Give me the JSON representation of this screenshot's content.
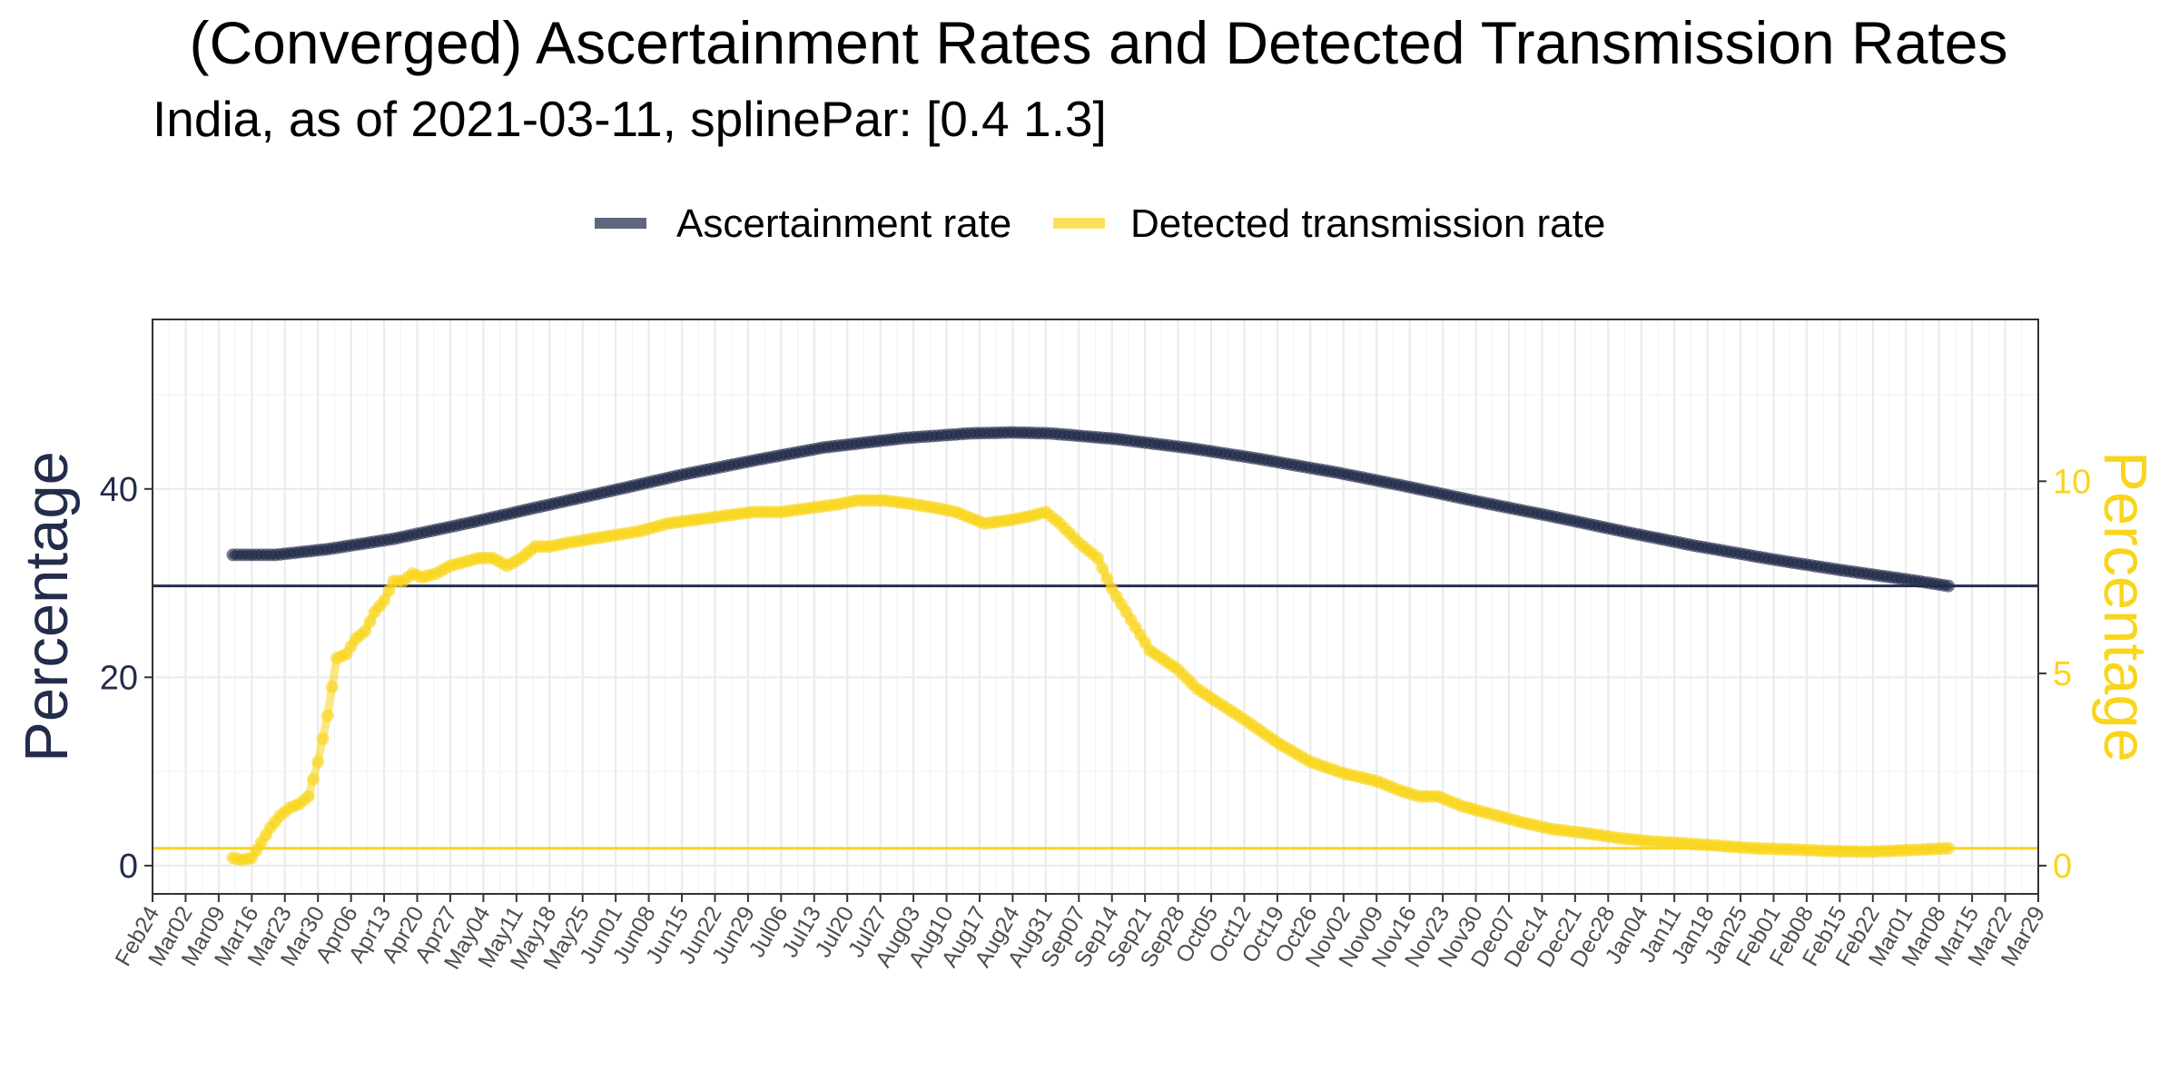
{
  "chart_data": {
    "type": "line",
    "title": "(Converged) Ascertainment Rates and Detected Transmission Rates",
    "subtitle": "India, as of 2021-03-11, splinePar: [0.4 1.3]",
    "ylabel_left": "Percentage",
    "ylabel_right": "Percentage",
    "legend_position": "top",
    "grid": true,
    "x_axis": {
      "type": "date",
      "range": [
        "2020-02-24",
        "2021-03-29"
      ],
      "tick_labels": [
        "Feb24",
        "Mar02",
        "Mar09",
        "Mar16",
        "Mar23",
        "Mar30",
        "Apr06",
        "Apr13",
        "Apr20",
        "Apr27",
        "May04",
        "May11",
        "May18",
        "May25",
        "Jun01",
        "Jun08",
        "Jun15",
        "Jun22",
        "Jun29",
        "Jul06",
        "Jul13",
        "Jul20",
        "Jul27",
        "Aug03",
        "Aug10",
        "Aug17",
        "Aug24",
        "Aug31",
        "Sep07",
        "Sep14",
        "Sep21",
        "Sep28",
        "Oct05",
        "Oct12",
        "Oct19",
        "Oct26",
        "Nov02",
        "Nov09",
        "Nov16",
        "Nov23",
        "Nov30",
        "Dec07",
        "Dec14",
        "Dec21",
        "Dec28",
        "Jan04",
        "Jan11",
        "Jan18",
        "Jan25",
        "Feb01",
        "Feb08",
        "Feb15",
        "Feb22",
        "Mar01",
        "Mar08",
        "Mar15",
        "Mar22",
        "Mar29"
      ]
    },
    "y_left": {
      "range": [
        -3,
        58
      ],
      "ticks": [
        0,
        20,
        40
      ],
      "color": "#232d4b"
    },
    "y_right": {
      "range": [
        -0.735,
        14.21
      ],
      "ticks": [
        0,
        5,
        10
      ],
      "color": "#f9d51c",
      "factor_to_left": 4.082
    },
    "hlines": [
      {
        "series": "Ascertainment rate",
        "y_left": 29.7,
        "color": "#232d4b"
      },
      {
        "series": "Detected transmission rate",
        "y_right": 0.45,
        "color": "#f9d51c"
      }
    ],
    "series": [
      {
        "name": "Ascertainment rate",
        "axis": "left",
        "color": "#232d4b",
        "x": [
          "2020-03-12",
          "2020-03-21",
          "2020-04-01",
          "2020-04-15",
          "2020-05-01",
          "2020-05-15",
          "2020-06-01",
          "2020-06-15",
          "2020-07-01",
          "2020-07-15",
          "2020-08-01",
          "2020-08-15",
          "2020-08-24",
          "2020-09-01",
          "2020-09-15",
          "2020-10-01",
          "2020-10-15",
          "2020-11-01",
          "2020-11-15",
          "2020-12-01",
          "2020-12-15",
          "2021-01-01",
          "2021-01-15",
          "2021-02-01",
          "2021-02-15",
          "2021-03-01",
          "2021-03-10"
        ],
        "y": [
          33.0,
          33.0,
          33.6,
          34.7,
          36.4,
          38.0,
          39.9,
          41.5,
          43.1,
          44.4,
          45.4,
          45.9,
          46.0,
          45.9,
          45.3,
          44.3,
          43.2,
          41.7,
          40.3,
          38.6,
          37.2,
          35.4,
          34.0,
          32.5,
          31.4,
          30.4,
          29.7
        ]
      },
      {
        "name": "Detected transmission rate",
        "axis": "right",
        "color": "#f9d51c",
        "x": [
          "2020-03-12",
          "2020-03-14",
          "2020-03-16",
          "2020-03-18",
          "2020-03-20",
          "2020-03-22",
          "2020-03-24",
          "2020-03-26",
          "2020-03-28",
          "2020-03-30",
          "2020-04-01",
          "2020-04-03",
          "2020-04-05",
          "2020-04-07",
          "2020-04-09",
          "2020-04-11",
          "2020-04-13",
          "2020-04-15",
          "2020-04-17",
          "2020-04-19",
          "2020-04-21",
          "2020-04-24",
          "2020-04-27",
          "2020-04-30",
          "2020-05-03",
          "2020-05-06",
          "2020-05-09",
          "2020-05-12",
          "2020-05-15",
          "2020-05-18",
          "2020-05-22",
          "2020-05-27",
          "2020-06-01",
          "2020-06-06",
          "2020-06-12",
          "2020-06-18",
          "2020-06-24",
          "2020-06-30",
          "2020-07-06",
          "2020-07-12",
          "2020-07-18",
          "2020-07-22",
          "2020-07-28",
          "2020-08-03",
          "2020-08-08",
          "2020-08-12",
          "2020-08-18",
          "2020-08-24",
          "2020-08-28",
          "2020-08-31",
          "2020-09-03",
          "2020-09-07",
          "2020-09-11",
          "2020-09-14",
          "2020-09-18",
          "2020-09-22",
          "2020-09-28",
          "2020-10-02",
          "2020-10-07",
          "2020-10-12",
          "2020-10-19",
          "2020-10-26",
          "2020-11-02",
          "2020-11-09",
          "2020-11-14",
          "2020-11-18",
          "2020-11-22",
          "2020-11-27",
          "2020-12-03",
          "2020-12-09",
          "2020-12-16",
          "2020-12-23",
          "2020-12-30",
          "2021-01-06",
          "2021-01-13",
          "2021-01-20",
          "2021-01-28",
          "2021-02-05",
          "2021-02-13",
          "2021-02-21",
          "2021-03-01",
          "2021-03-10"
        ],
        "y": [
          0.2,
          0.15,
          0.2,
          0.6,
          1.0,
          1.3,
          1.5,
          1.6,
          1.8,
          2.7,
          3.9,
          5.4,
          5.5,
          5.9,
          6.1,
          6.6,
          6.9,
          7.4,
          7.4,
          7.6,
          7.5,
          7.6,
          7.8,
          7.9,
          8.0,
          8.0,
          7.8,
          8.0,
          8.3,
          8.3,
          8.4,
          8.5,
          8.6,
          8.7,
          8.9,
          9.0,
          9.1,
          9.2,
          9.2,
          9.3,
          9.4,
          9.5,
          9.5,
          9.4,
          9.3,
          9.2,
          8.9,
          9.0,
          9.1,
          9.2,
          8.9,
          8.4,
          8.0,
          7.2,
          6.4,
          5.6,
          5.1,
          4.6,
          4.2,
          3.8,
          3.2,
          2.7,
          2.4,
          2.2,
          1.95,
          1.8,
          1.8,
          1.55,
          1.35,
          1.15,
          0.95,
          0.85,
          0.72,
          0.63,
          0.58,
          0.52,
          0.45,
          0.42,
          0.38,
          0.36,
          0.4,
          0.45
        ]
      }
    ]
  }
}
